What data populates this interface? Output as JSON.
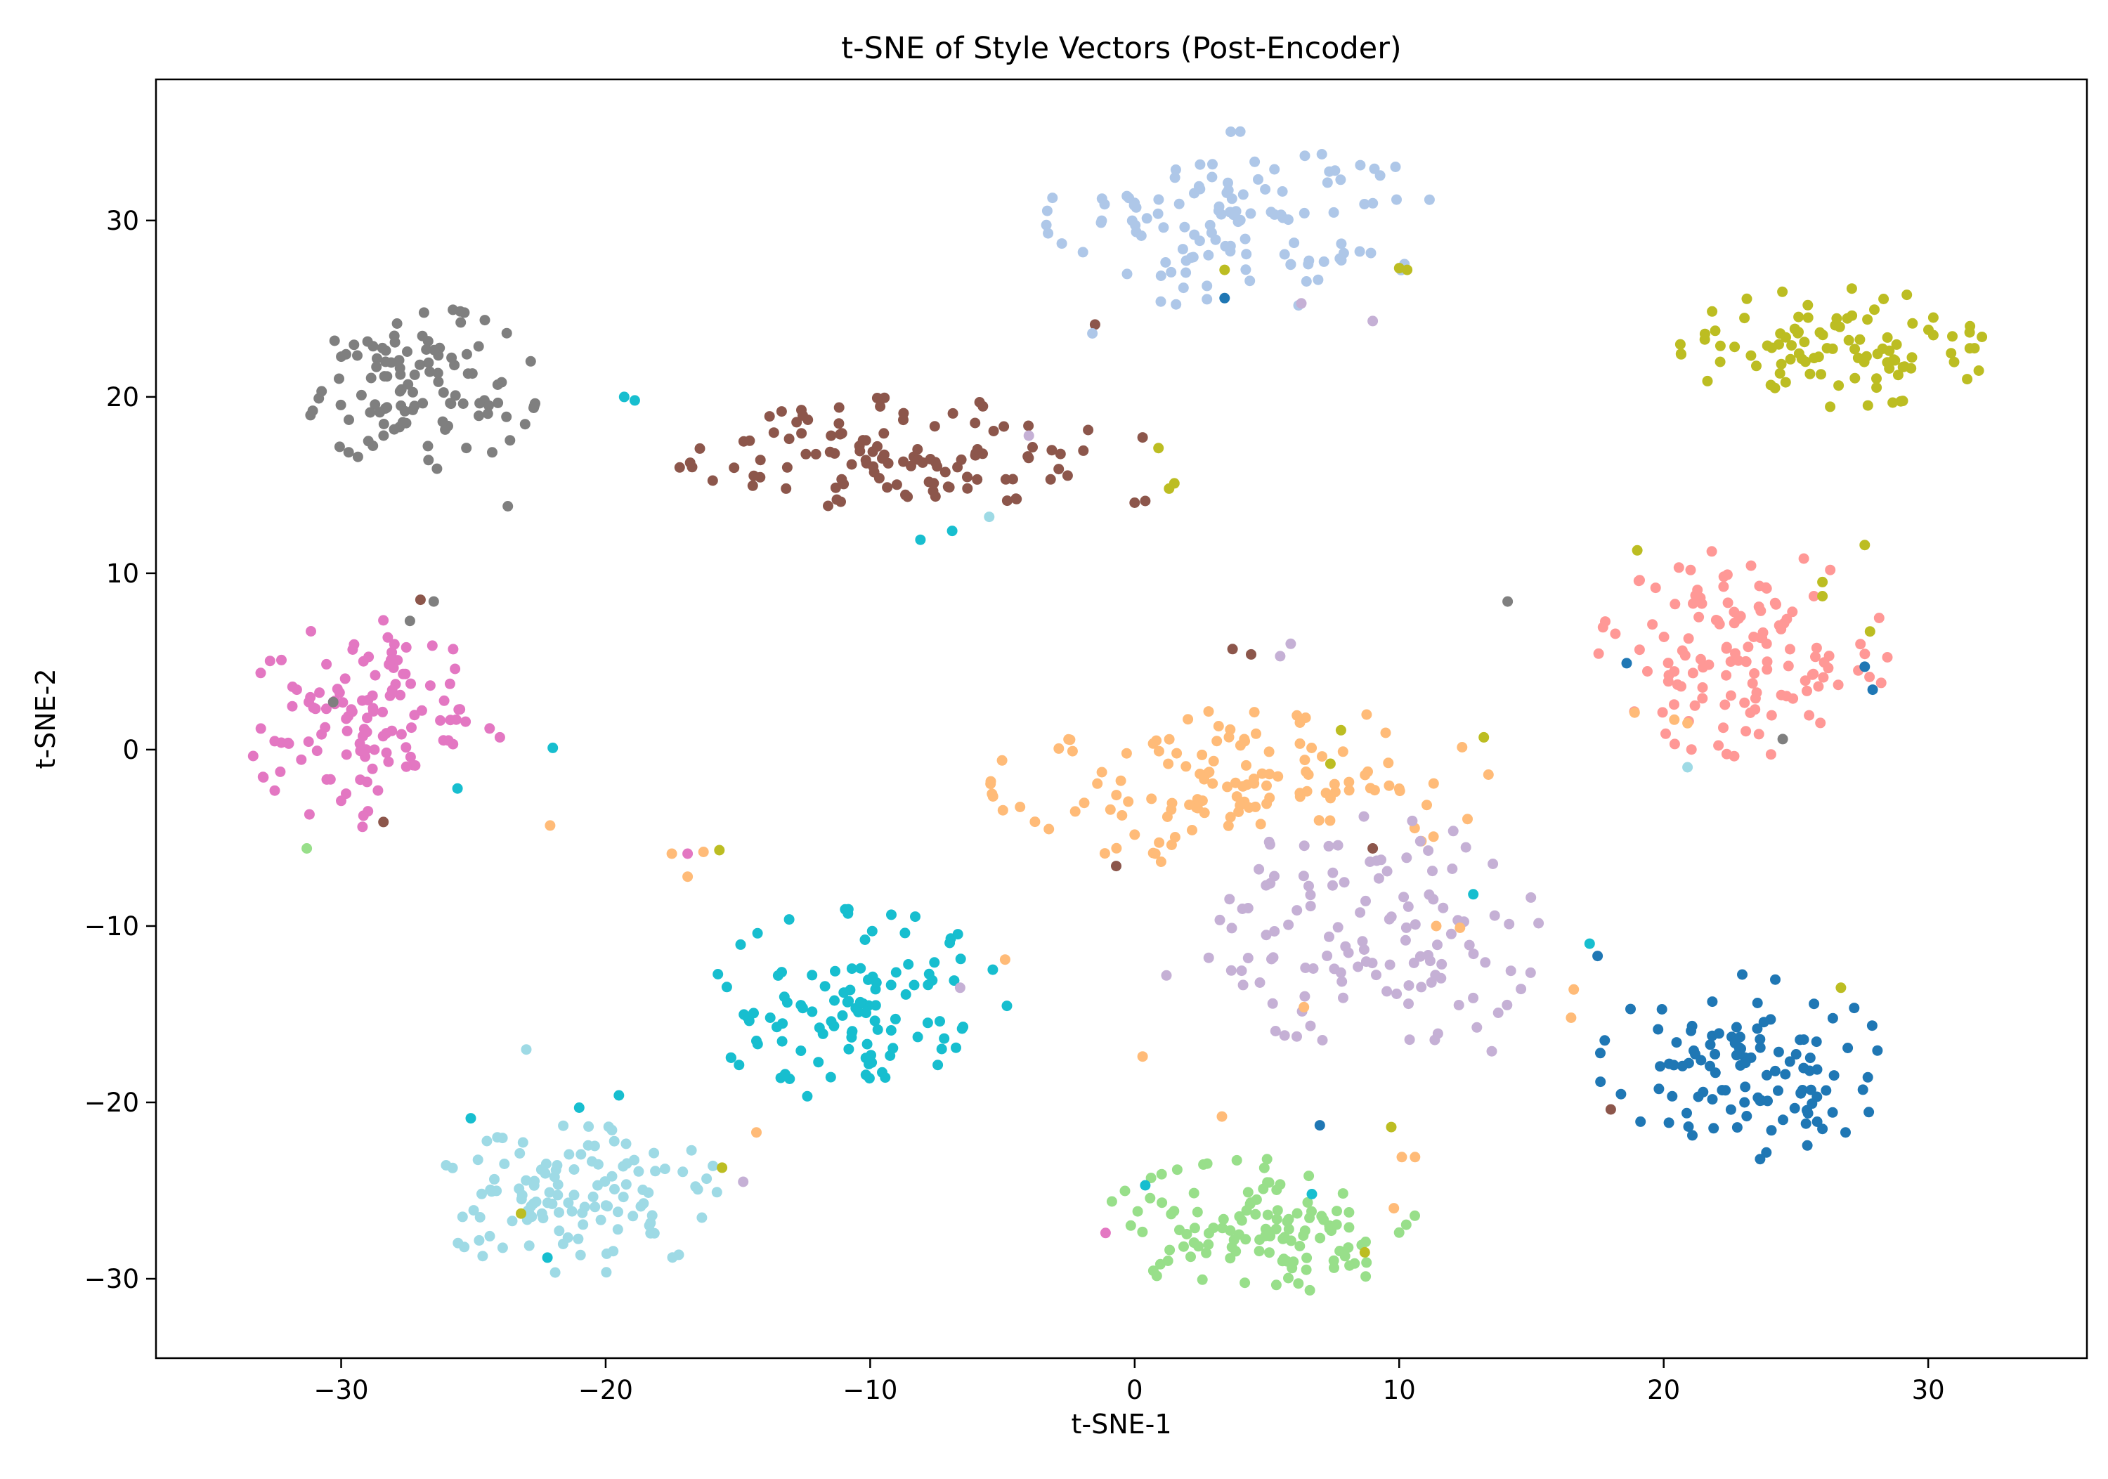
{
  "chart_data": {
    "type": "scatter",
    "title": "t-SNE of Style Vectors (Post-Encoder)",
    "xlabel": "t-SNE-1",
    "ylabel": "t-SNE-2",
    "xlim": [
      -37,
      36
    ],
    "ylim": [
      -34.5,
      38
    ],
    "xticks": [
      -30,
      -20,
      -10,
      0,
      10,
      20,
      30
    ],
    "yticks": [
      -30,
      -20,
      -10,
      0,
      10,
      20,
      30
    ],
    "grid": false,
    "legend": "none",
    "palette": [
      "#1f77b4",
      "#aec7e8",
      "#ffbb78",
      "#98df8a",
      "#ff9896",
      "#c5b0d5",
      "#8c564b",
      "#e377c2",
      "#7f7f7f",
      "#bcbd22",
      "#17becf",
      "#9edae5"
    ],
    "clusters": [
      {
        "color": "#1f77b4",
        "center": [
          23.0,
          -18.0
        ],
        "spread": [
          2.6,
          2.5
        ],
        "count": 110
      },
      {
        "color": "#aec7e8",
        "center": [
          4.0,
          30.0
        ],
        "spread": [
          3.5,
          2.4
        ],
        "count": 120
      },
      {
        "color": "#ffbb78",
        "center": [
          4.0,
          -2.0
        ],
        "spread": [
          4.5,
          2.2
        ],
        "count": 130
      },
      {
        "color": "#98df8a",
        "center": [
          5.0,
          -27.0
        ],
        "spread": [
          3.0,
          1.8
        ],
        "count": 120
      },
      {
        "color": "#ff9896",
        "center": [
          23.0,
          5.5
        ],
        "spread": [
          2.6,
          2.8
        ],
        "count": 130
      },
      {
        "color": "#c5b0d5",
        "center": [
          9.0,
          -10.5
        ],
        "spread": [
          3.0,
          3.2
        ],
        "count": 120
      },
      {
        "color": "#8c564b",
        "center": [
          -9.0,
          16.8
        ],
        "spread": [
          3.8,
          1.5
        ],
        "count": 110
      },
      {
        "color": "#e377c2",
        "center": [
          -29.0,
          1.5
        ],
        "spread": [
          2.2,
          2.8
        ],
        "count": 120
      },
      {
        "color": "#7f7f7f",
        "center": [
          -27.0,
          20.5
        ],
        "spread": [
          2.1,
          2.2
        ],
        "count": 110
      },
      {
        "color": "#bcbd22",
        "center": [
          26.5,
          22.8
        ],
        "spread": [
          2.8,
          1.6
        ],
        "count": 100
      },
      {
        "color": "#17becf",
        "center": [
          -10.5,
          -14.5
        ],
        "spread": [
          2.7,
          2.6
        ],
        "count": 110
      },
      {
        "color": "#9edae5",
        "center": [
          -21.0,
          -25.5
        ],
        "spread": [
          2.7,
          2.0
        ],
        "count": 120
      }
    ],
    "outliers": [
      {
        "color": "#8c564b",
        "x": -1.5,
        "y": 24.1
      },
      {
        "color": "#bcbd22",
        "x": 3.4,
        "y": 27.2
      },
      {
        "color": "#1f77b4",
        "x": 3.4,
        "y": 25.6
      },
      {
        "color": "#c5b0d5",
        "x": 6.3,
        "y": 25.3
      },
      {
        "color": "#c5b0d5",
        "x": 9.0,
        "y": 24.3
      },
      {
        "color": "#bcbd22",
        "x": 10.0,
        "y": 27.3
      },
      {
        "color": "#bcbd22",
        "x": 10.3,
        "y": 27.2
      },
      {
        "color": "#aec7e8",
        "x": -1.6,
        "y": 23.6
      },
      {
        "color": "#17becf",
        "x": -19.3,
        "y": 20.0
      },
      {
        "color": "#17becf",
        "x": -18.9,
        "y": 19.8
      },
      {
        "color": "#8c564b",
        "x": -17.2,
        "y": 16.0
      },
      {
        "color": "#8c564b",
        "x": 0.0,
        "y": 14.0
      },
      {
        "color": "#8c564b",
        "x": 0.3,
        "y": 17.7
      },
      {
        "color": "#8c564b",
        "x": 0.4,
        "y": 14.1
      },
      {
        "color": "#bcbd22",
        "x": 0.9,
        "y": 17.1
      },
      {
        "color": "#bcbd22",
        "x": 1.3,
        "y": 14.8
      },
      {
        "color": "#bcbd22",
        "x": 1.5,
        "y": 15.1
      },
      {
        "color": "#c5b0d5",
        "x": -4.0,
        "y": 17.8
      },
      {
        "color": "#9edae5",
        "x": -5.5,
        "y": 13.2
      },
      {
        "color": "#17becf",
        "x": -8.1,
        "y": 11.9
      },
      {
        "color": "#17becf",
        "x": -6.9,
        "y": 12.4
      },
      {
        "color": "#7f7f7f",
        "x": -23.7,
        "y": 13.8
      },
      {
        "color": "#8c564b",
        "x": -27.0,
        "y": 8.5
      },
      {
        "color": "#7f7f7f",
        "x": -26.5,
        "y": 8.4
      },
      {
        "color": "#7f7f7f",
        "x": -27.4,
        "y": 7.3
      },
      {
        "color": "#7f7f7f",
        "x": -30.3,
        "y": 2.7
      },
      {
        "color": "#e377c2",
        "x": -24.0,
        "y": 0.7
      },
      {
        "color": "#17becf",
        "x": -22.0,
        "y": 0.1
      },
      {
        "color": "#17becf",
        "x": -25.6,
        "y": -2.2
      },
      {
        "color": "#8c564b",
        "x": -28.4,
        "y": -4.1
      },
      {
        "color": "#98df8a",
        "x": -31.3,
        "y": -5.6
      },
      {
        "color": "#ffbb78",
        "x": -22.1,
        "y": -4.3
      },
      {
        "color": "#ffbb78",
        "x": -17.5,
        "y": -5.9
      },
      {
        "color": "#ffbb78",
        "x": -16.9,
        "y": -7.2
      },
      {
        "color": "#e377c2",
        "x": -16.9,
        "y": -5.9
      },
      {
        "color": "#ffbb78",
        "x": -16.3,
        "y": -5.8
      },
      {
        "color": "#bcbd22",
        "x": -15.7,
        "y": -5.7
      },
      {
        "color": "#ffbb78",
        "x": -4.9,
        "y": -11.9
      },
      {
        "color": "#c5b0d5",
        "x": -6.6,
        "y": -13.5
      },
      {
        "color": "#ffbb78",
        "x": 0.3,
        "y": -17.4
      },
      {
        "color": "#9edae5",
        "x": -23.0,
        "y": -17.0
      },
      {
        "color": "#ffbb78",
        "x": -14.3,
        "y": -21.7
      },
      {
        "color": "#bcbd22",
        "x": -15.6,
        "y": -23.7
      },
      {
        "color": "#c5b0d5",
        "x": -14.8,
        "y": -24.5
      },
      {
        "color": "#bcbd22",
        "x": -23.2,
        "y": -26.3
      },
      {
        "color": "#17becf",
        "x": -22.2,
        "y": -28.8
      },
      {
        "color": "#17becf",
        "x": -19.5,
        "y": -19.6
      },
      {
        "color": "#17becf",
        "x": -21.0,
        "y": -20.3
      },
      {
        "color": "#17becf",
        "x": -25.1,
        "y": -20.9
      },
      {
        "color": "#8c564b",
        "x": 3.7,
        "y": 5.7
      },
      {
        "color": "#8c564b",
        "x": 4.4,
        "y": 5.4
      },
      {
        "color": "#c5b0d5",
        "x": 5.5,
        "y": 5.3
      },
      {
        "color": "#c5b0d5",
        "x": 5.9,
        "y": 6.0
      },
      {
        "color": "#7f7f7f",
        "x": 14.1,
        "y": 8.4
      },
      {
        "color": "#bcbd22",
        "x": 13.2,
        "y": 0.7
      },
      {
        "color": "#bcbd22",
        "x": 7.8,
        "y": 1.1
      },
      {
        "color": "#bcbd22",
        "x": 7.4,
        "y": -0.8
      },
      {
        "color": "#8c564b",
        "x": -0.7,
        "y": -6.6
      },
      {
        "color": "#8c564b",
        "x": 9.0,
        "y": -5.6
      },
      {
        "color": "#17becf",
        "x": 12.8,
        "y": -8.2
      },
      {
        "color": "#ffbb78",
        "x": 11.4,
        "y": -10.0
      },
      {
        "color": "#ffbb78",
        "x": 12.3,
        "y": -10.1
      },
      {
        "color": "#ffbb78",
        "x": 6.4,
        "y": -14.6
      },
      {
        "color": "#c5b0d5",
        "x": 1.2,
        "y": -12.8
      },
      {
        "color": "#c5b0d5",
        "x": 2.8,
        "y": -11.8
      },
      {
        "color": "#c5b0d5",
        "x": 13.5,
        "y": -17.1
      },
      {
        "color": "#ffbb78",
        "x": 3.3,
        "y": -20.8
      },
      {
        "color": "#1f77b4",
        "x": 7.0,
        "y": -21.3
      },
      {
        "color": "#bcbd22",
        "x": 9.7,
        "y": -21.4
      },
      {
        "color": "#17becf",
        "x": 0.4,
        "y": -24.7
      },
      {
        "color": "#e377c2",
        "x": -1.1,
        "y": -27.4
      },
      {
        "color": "#17becf",
        "x": 6.7,
        "y": -25.2
      },
      {
        "color": "#bcbd22",
        "x": 8.7,
        "y": -28.5
      },
      {
        "color": "#ffbb78",
        "x": 10.1,
        "y": -23.1
      },
      {
        "color": "#ffbb78",
        "x": 10.6,
        "y": -23.1
      },
      {
        "color": "#ffbb78",
        "x": 9.8,
        "y": -26.0
      },
      {
        "color": "#1f77b4",
        "x": 18.6,
        "y": 4.9
      },
      {
        "color": "#ffbb78",
        "x": 18.9,
        "y": 2.1
      },
      {
        "color": "#ffbb78",
        "x": 20.4,
        "y": 1.7
      },
      {
        "color": "#ffbb78",
        "x": 20.9,
        "y": 1.5
      },
      {
        "color": "#9edae5",
        "x": 20.9,
        "y": -1.0
      },
      {
        "color": "#bcbd22",
        "x": 19.0,
        "y": 11.3
      },
      {
        "color": "#bcbd22",
        "x": 26.0,
        "y": 9.5
      },
      {
        "color": "#bcbd22",
        "x": 26.0,
        "y": 8.7
      },
      {
        "color": "#bcbd22",
        "x": 27.6,
        "y": 11.6
      },
      {
        "color": "#bcbd22",
        "x": 27.8,
        "y": 6.7
      },
      {
        "color": "#1f77b4",
        "x": 27.6,
        "y": 4.7
      },
      {
        "color": "#1f77b4",
        "x": 27.9,
        "y": 3.4
      },
      {
        "color": "#7f7f7f",
        "x": 24.5,
        "y": 0.6
      },
      {
        "color": "#17becf",
        "x": 17.2,
        "y": -11.0
      },
      {
        "color": "#1f77b4",
        "x": 17.5,
        "y": -11.7
      },
      {
        "color": "#ffbb78",
        "x": 16.6,
        "y": -13.6
      },
      {
        "color": "#ffbb78",
        "x": 16.5,
        "y": -15.2
      },
      {
        "color": "#8c564b",
        "x": 18.0,
        "y": -20.4
      },
      {
        "color": "#bcbd22",
        "x": 26.7,
        "y": -13.5
      }
    ]
  }
}
